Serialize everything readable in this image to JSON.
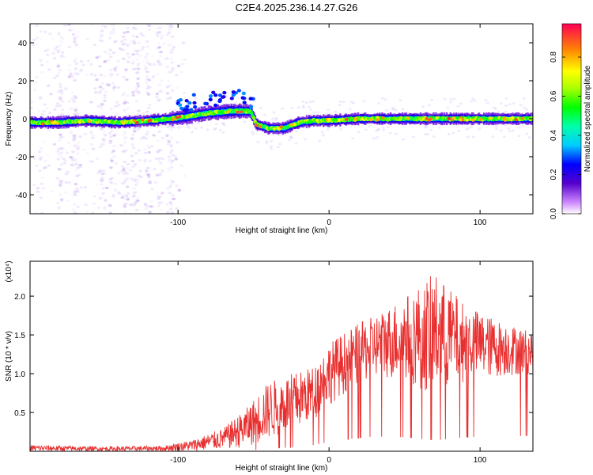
{
  "title": "C2E4.2025.236.14.27.G26",
  "chart_data": [
    {
      "type": "heatmap",
      "xlabel": "Height of straight line (km)",
      "ylabel": "Frequency (Hz)",
      "xlim": [
        -198,
        135
      ],
      "ylim": [
        -50,
        50
      ],
      "xticks": [
        -100,
        0,
        100
      ],
      "yticks": [
        -40,
        -20,
        0,
        20,
        40
      ],
      "colorbar": {
        "label": "Normalized spectral amplitude",
        "ticks": [
          0.0,
          0.2,
          0.4,
          0.6,
          0.8
        ],
        "range": [
          0,
          0.97
        ]
      },
      "ridge": [
        {
          "x": -198,
          "y": -2
        },
        {
          "x": -180,
          "y": -2
        },
        {
          "x": -160,
          "y": -1
        },
        {
          "x": -140,
          "y": -2
        },
        {
          "x": -120,
          "y": -1
        },
        {
          "x": -105,
          "y": 0
        },
        {
          "x": -95,
          "y": 1
        },
        {
          "x": -80,
          "y": 3
        },
        {
          "x": -65,
          "y": 4
        },
        {
          "x": -52,
          "y": 4
        },
        {
          "x": -48,
          "y": -3
        },
        {
          "x": -40,
          "y": -5
        },
        {
          "x": -30,
          "y": -5
        },
        {
          "x": -20,
          "y": -2
        },
        {
          "x": -10,
          "y": -1
        },
        {
          "x": 0,
          "y": -1
        },
        {
          "x": 20,
          "y": 0
        },
        {
          "x": 40,
          "y": 0
        },
        {
          "x": 60,
          "y": 0
        },
        {
          "x": 80,
          "y": 0
        },
        {
          "x": 100,
          "y": 0
        },
        {
          "x": 120,
          "y": 0
        },
        {
          "x": 135,
          "y": 0
        }
      ]
    },
    {
      "type": "line",
      "xlabel": "Height of straight line (km)",
      "ylabel": "SNR (10 * v/v)",
      "yscale_label": "(x10⁴)",
      "xlim": [
        -198,
        135
      ],
      "ylim": [
        0,
        2.45
      ],
      "xticks": [
        -100,
        0,
        100
      ],
      "yticks": [
        0.5,
        1.0,
        1.5,
        2.0
      ],
      "series": [
        {
          "color": "#e83030",
          "envelope": [
            {
              "x": -198,
              "lo": 0.0,
              "hi": 0.08
            },
            {
              "x": -150,
              "lo": 0.0,
              "hi": 0.06
            },
            {
              "x": -110,
              "lo": 0.0,
              "hi": 0.07
            },
            {
              "x": -90,
              "lo": 0.0,
              "hi": 0.15
            },
            {
              "x": -70,
              "lo": 0.02,
              "hi": 0.3
            },
            {
              "x": -55,
              "lo": 0.05,
              "hi": 0.55
            },
            {
              "x": -40,
              "lo": 0.15,
              "hi": 0.9
            },
            {
              "x": -25,
              "lo": 0.25,
              "hi": 1.0
            },
            {
              "x": -10,
              "lo": 0.4,
              "hi": 1.1
            },
            {
              "x": 0,
              "lo": 0.6,
              "hi": 1.4
            },
            {
              "x": 15,
              "lo": 0.8,
              "hi": 1.6
            },
            {
              "x": 30,
              "lo": 0.95,
              "hi": 1.75
            },
            {
              "x": 50,
              "lo": 0.9,
              "hi": 2.0
            },
            {
              "x": 70,
              "lo": 0.7,
              "hi": 2.3
            },
            {
              "x": 90,
              "lo": 0.9,
              "hi": 1.9
            },
            {
              "x": 110,
              "lo": 0.95,
              "hi": 1.7
            },
            {
              "x": 135,
              "lo": 1.0,
              "hi": 1.55
            }
          ]
        }
      ]
    }
  ]
}
